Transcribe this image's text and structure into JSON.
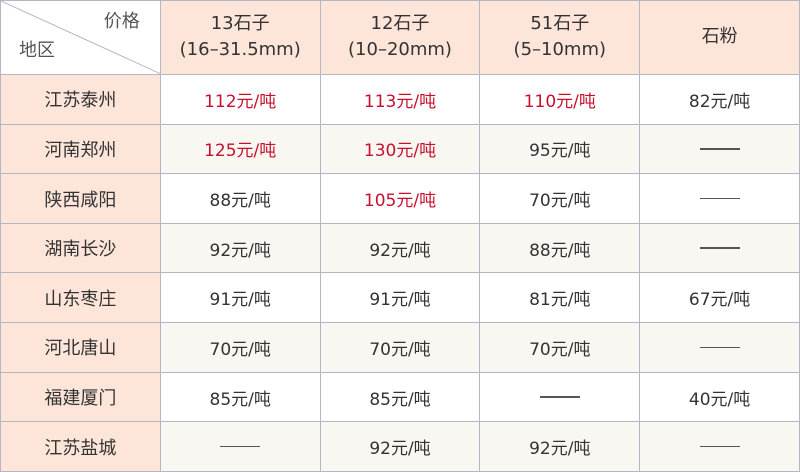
{
  "corner": {
    "top_label": "价格",
    "bottom_label": "地区"
  },
  "columns": [
    {
      "line1": "13石子",
      "line2": "(16–31.5mm)"
    },
    {
      "line1": "12石子",
      "line2": "(10–20mm)"
    },
    {
      "line1": "51石子",
      "line2": "(5–10mm)"
    },
    {
      "line1": "石粉",
      "line2": ""
    }
  ],
  "highlight_color": "#c8102e",
  "rows": [
    {
      "region": "江苏泰州",
      "cells": [
        {
          "v": "112元/吨",
          "red": true
        },
        {
          "v": "113元/吨",
          "red": true
        },
        {
          "v": "110元/吨",
          "red": true
        },
        {
          "v": "82元/吨"
        }
      ]
    },
    {
      "region": "河南郑州",
      "cells": [
        {
          "v": "125元/吨",
          "red": true
        },
        {
          "v": "130元/吨",
          "red": true
        },
        {
          "v": "95元/吨"
        },
        {
          "v": "——"
        }
      ]
    },
    {
      "region": "陕西咸阳",
      "cells": [
        {
          "v": "88元/吨"
        },
        {
          "v": "105元/吨",
          "red": true
        },
        {
          "v": "70元/吨"
        },
        {
          "v": "——"
        }
      ]
    },
    {
      "region": "湖南长沙",
      "cells": [
        {
          "v": "92元/吨"
        },
        {
          "v": "92元/吨"
        },
        {
          "v": "88元/吨"
        },
        {
          "v": "——"
        }
      ]
    },
    {
      "region": "山东枣庄",
      "cells": [
        {
          "v": "91元/吨"
        },
        {
          "v": "91元/吨"
        },
        {
          "v": "81元/吨"
        },
        {
          "v": "67元/吨"
        }
      ]
    },
    {
      "region": "河北唐山",
      "cells": [
        {
          "v": "70元/吨"
        },
        {
          "v": "70元/吨"
        },
        {
          "v": "70元/吨"
        },
        {
          "v": "——"
        }
      ]
    },
    {
      "region": "福建厦门",
      "cells": [
        {
          "v": "85元/吨"
        },
        {
          "v": "85元/吨"
        },
        {
          "v": "——"
        },
        {
          "v": "40元/吨"
        }
      ]
    },
    {
      "region": "江苏盐城",
      "cells": [
        {
          "v": "——"
        },
        {
          "v": "92元/吨"
        },
        {
          "v": "92元/吨"
        },
        {
          "v": "——"
        }
      ]
    }
  ]
}
